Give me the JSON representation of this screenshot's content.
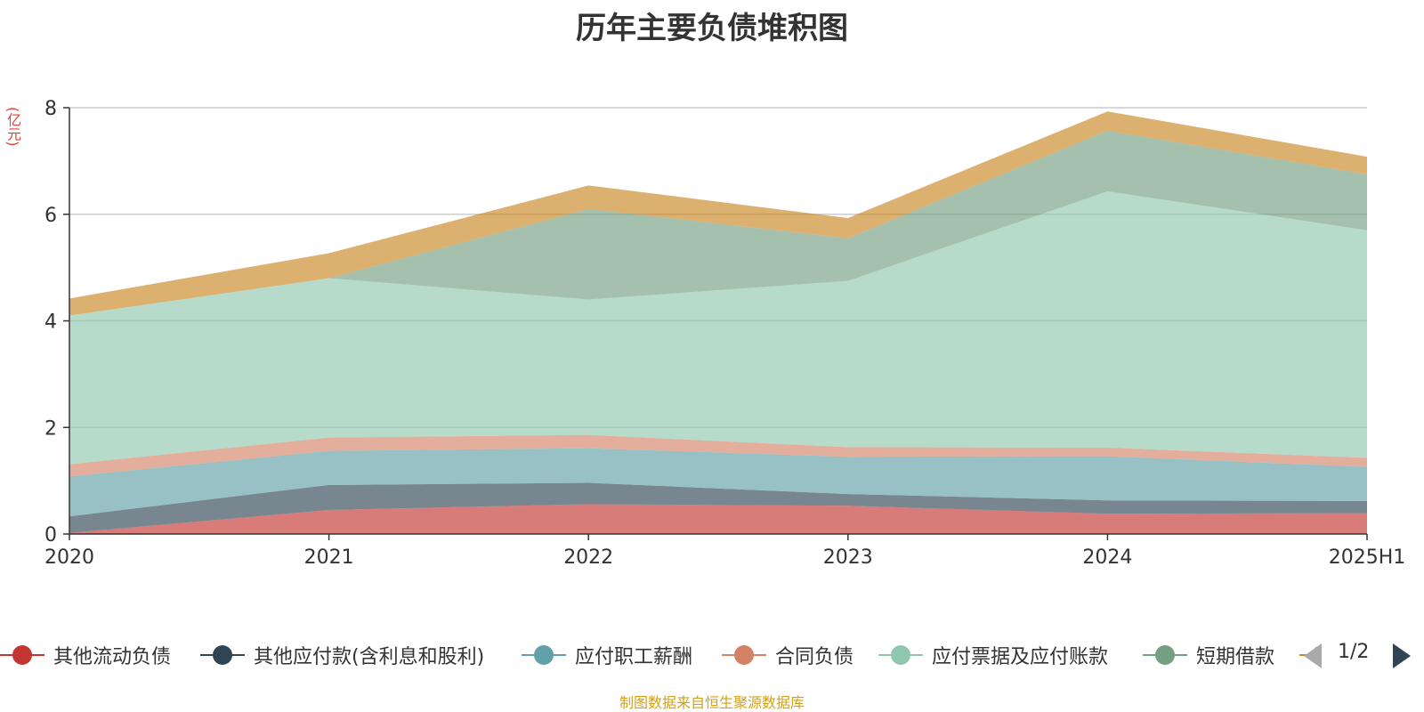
{
  "chart_data": {
    "type": "area",
    "title": "历年主要负债堆积图",
    "ylabel": "(亿元)",
    "ylim": [
      0,
      8
    ],
    "yticks": [
      0,
      2,
      4,
      6,
      8
    ],
    "grid": true,
    "stacked": true,
    "legend_position": "bottom",
    "categories": [
      "2020",
      "2021",
      "2022",
      "2023",
      "2024",
      "2025H1"
    ],
    "series": [
      {
        "name": "其他流动负债",
        "color": "#c23531",
        "values": [
          0.02,
          0.45,
          0.56,
          0.53,
          0.38,
          0.39
        ]
      },
      {
        "name": "其他应付款(含利息和股利)",
        "color": "#2f4554",
        "values": [
          0.31,
          0.47,
          0.4,
          0.22,
          0.25,
          0.23
        ]
      },
      {
        "name": "应付职工薪酬",
        "color": "#61a0a8",
        "values": [
          0.75,
          0.64,
          0.65,
          0.7,
          0.83,
          0.64
        ]
      },
      {
        "name": "合同负债",
        "color": "#d48265",
        "values": [
          0.23,
          0.25,
          0.25,
          0.18,
          0.16,
          0.17
        ]
      },
      {
        "name": "应付票据及应付账款",
        "color": "#91c7ae",
        "values": [
          2.79,
          2.99,
          2.54,
          3.12,
          4.81,
          4.27
        ]
      },
      {
        "name": "短期借款",
        "color": "#749f83",
        "values": [
          0.0,
          0.0,
          1.7,
          0.8,
          1.14,
          1.05
        ]
      },
      {
        "name": "",
        "color": "#ca8622",
        "values": [
          0.32,
          0.47,
          0.44,
          0.38,
          0.36,
          0.33
        ]
      }
    ]
  },
  "legend": {
    "page_text": "1/2"
  },
  "source_text": "制图数据来自恒生聚源数据库"
}
